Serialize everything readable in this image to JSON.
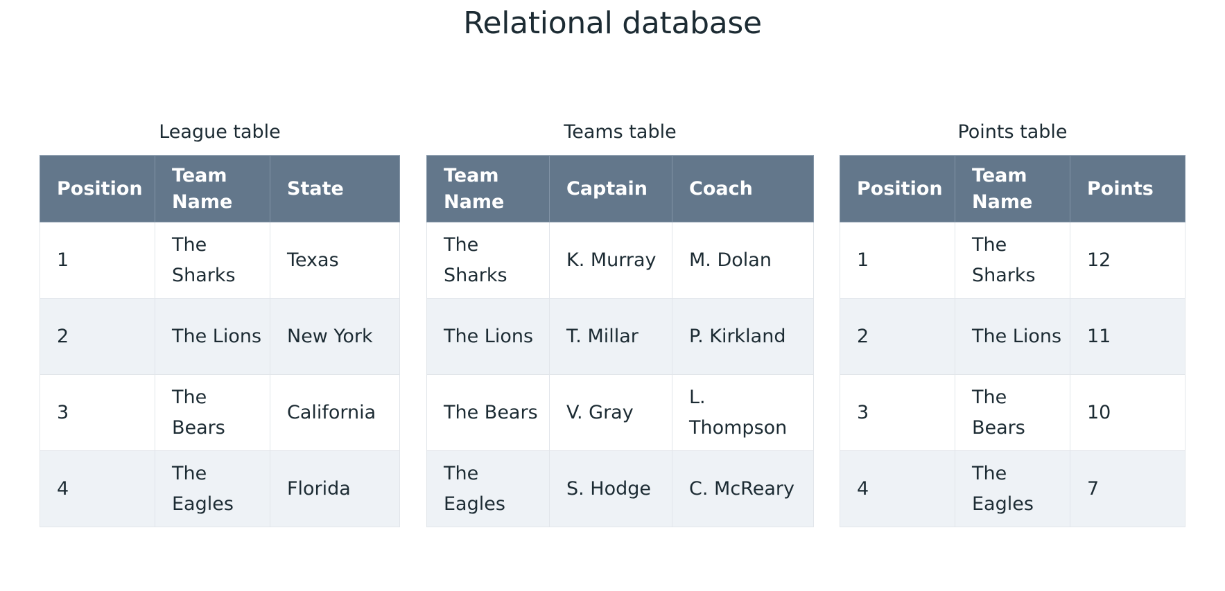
{
  "title": "Relational database",
  "tables": [
    {
      "caption": "League table",
      "columns": [
        "Position",
        "Team Name",
        "State"
      ],
      "rows": [
        [
          "1",
          "The Sharks",
          "Texas"
        ],
        [
          "2",
          "The Lions",
          "New York"
        ],
        [
          "3",
          "The Bears",
          "California"
        ],
        [
          "4",
          "The Eagles",
          "Florida"
        ]
      ]
    },
    {
      "caption": "Teams table",
      "columns": [
        "Team Name",
        "Captain",
        "Coach"
      ],
      "rows": [
        [
          "The Sharks",
          "K. Murray",
          "M. Dolan"
        ],
        [
          "The Lions",
          "T. Millar",
          "P. Kirkland"
        ],
        [
          "The Bears",
          "V. Gray",
          "L. Thompson"
        ],
        [
          "The Eagles",
          "S. Hodge",
          "C. McReary"
        ]
      ]
    },
    {
      "caption": "Points table",
      "columns": [
        "Position",
        "Team Name",
        "Points"
      ],
      "rows": [
        [
          "1",
          "The Sharks",
          "12"
        ],
        [
          "2",
          "The Lions",
          "11"
        ],
        [
          "3",
          "The Bears",
          "10"
        ],
        [
          "4",
          "The Eagles",
          "7"
        ]
      ]
    }
  ],
  "colors": {
    "header_background": "#63778b",
    "header_text": "#ffffff",
    "row_alternate": "#eef2f6",
    "row_default": "#ffffff",
    "text": "#1c2b33"
  }
}
